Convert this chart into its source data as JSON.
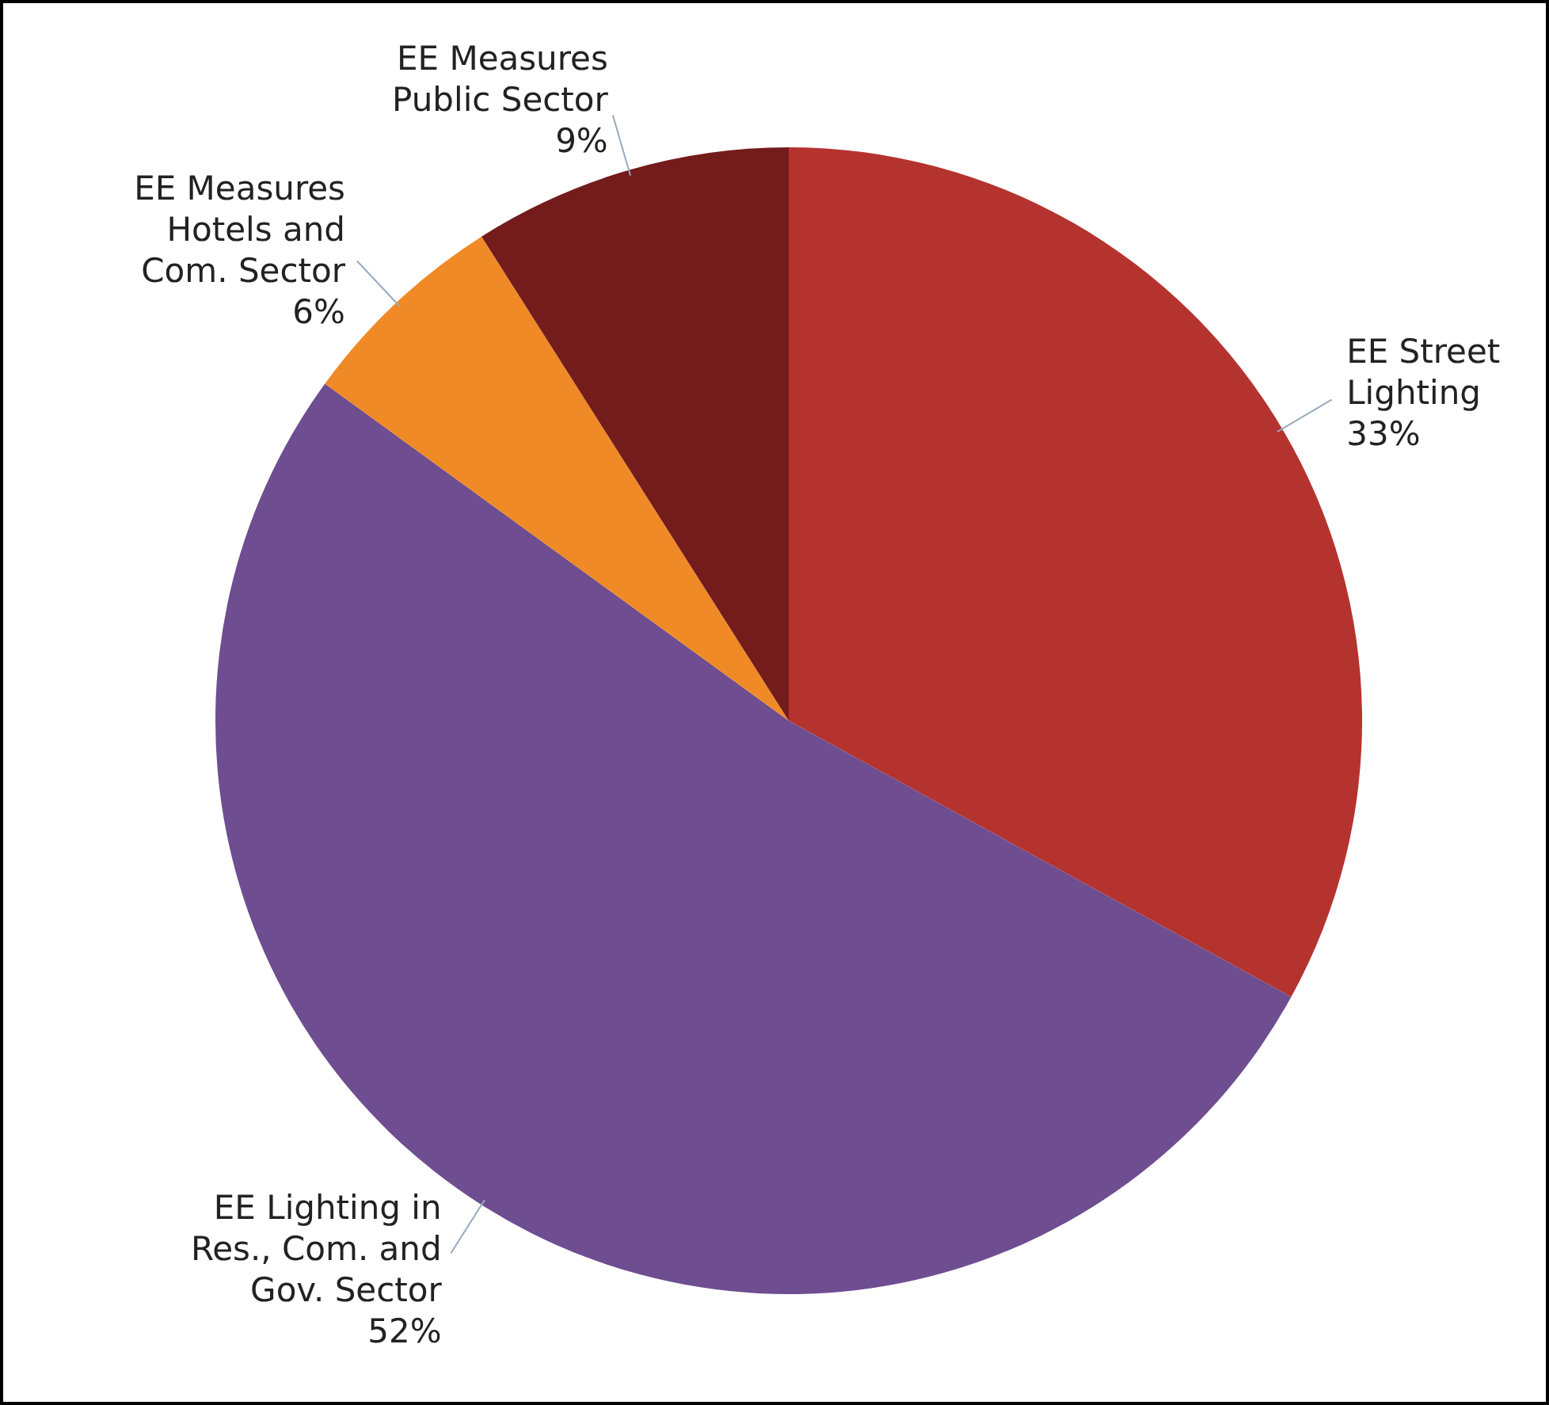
{
  "chart_data": {
    "type": "pie",
    "categories": [
      "EE Street Lighting",
      "EE Lighting in Res., Com. and Gov. Sector",
      "EE Measures Hotels and Com. Sector",
      "EE Measures Public Sector"
    ],
    "values": [
      33,
      52,
      6,
      9
    ],
    "value_labels": [
      "33%",
      "52%",
      "6%",
      "9%"
    ],
    "colors": [
      "#b5332f",
      "#6e4d90",
      "#f08a26",
      "#741b1b"
    ]
  }
}
